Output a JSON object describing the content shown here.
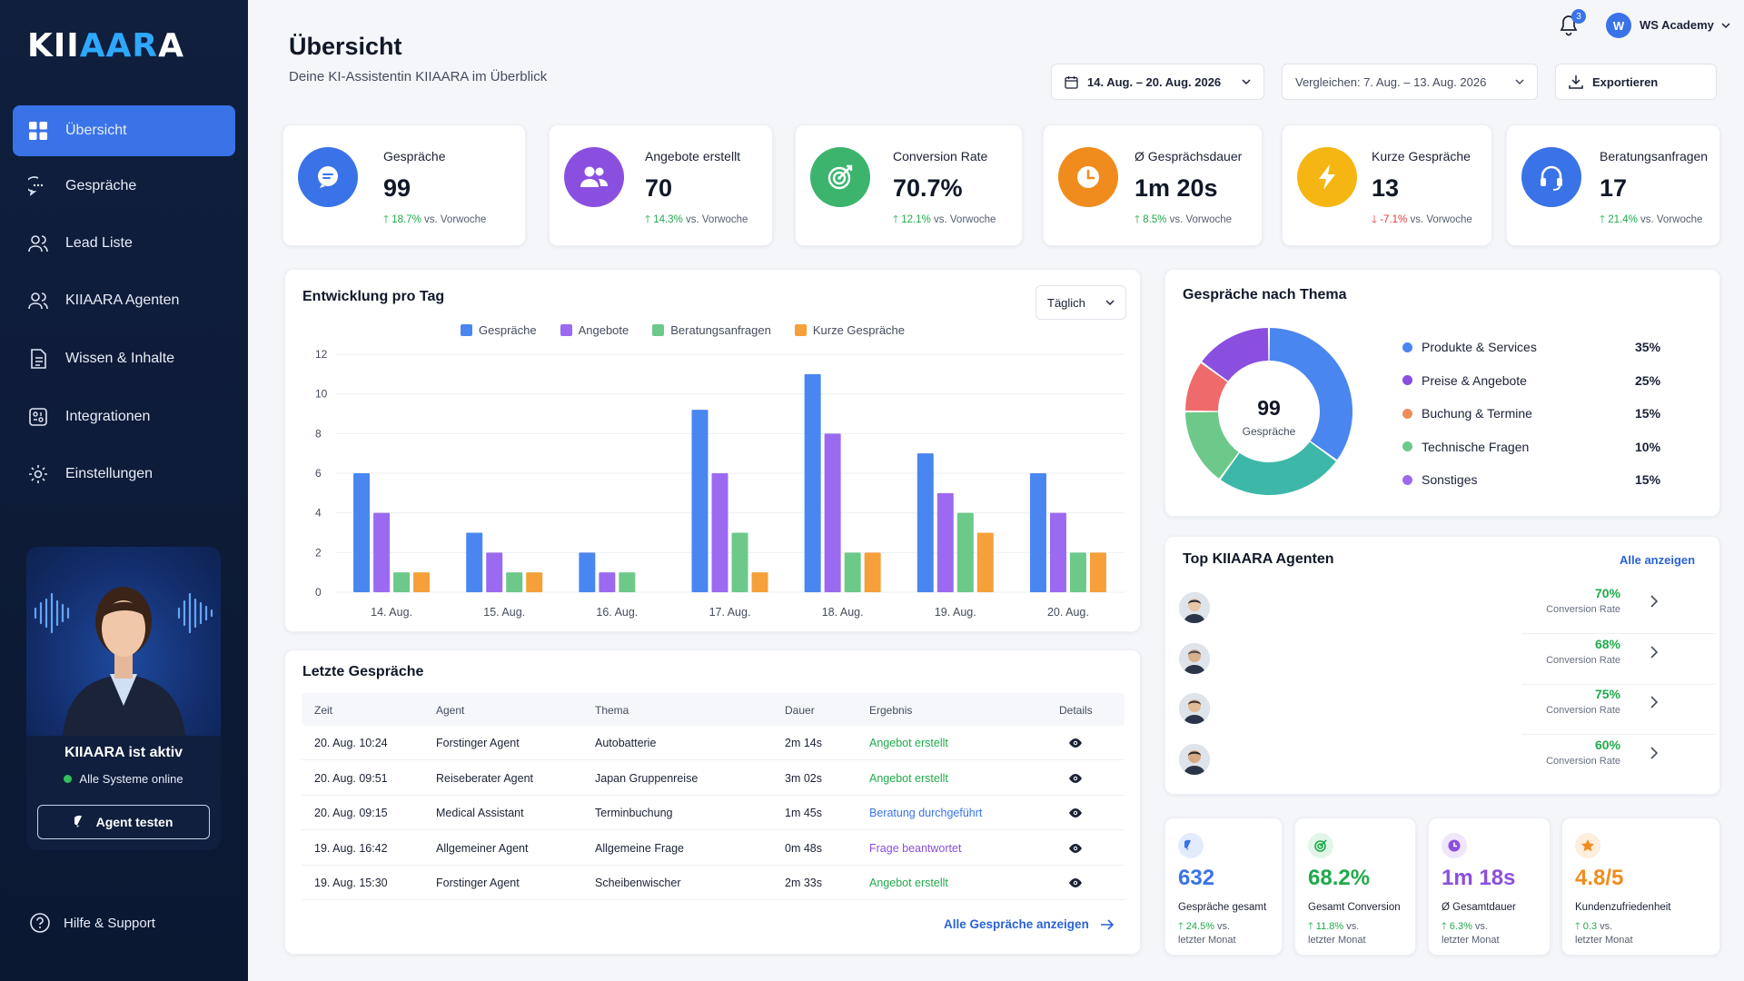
{
  "app": {
    "logo_main": "KIIAARA",
    "account": "WS Academy",
    "account_initial": "W",
    "notifications": "3"
  },
  "nav": {
    "items": [
      {
        "label": "Übersicht",
        "icon": "grid-icon",
        "active": true
      },
      {
        "label": "Gespräche",
        "icon": "chat-icon"
      },
      {
        "label": "Lead Liste",
        "icon": "users-icon"
      },
      {
        "label": "KIIAARA Agenten",
        "icon": "agents-icon"
      },
      {
        "label": "Wissen & Inhalte",
        "icon": "document-icon"
      },
      {
        "label": "Integrationen",
        "icon": "integrations-icon"
      },
      {
        "label": "Einstellungen",
        "icon": "gear-icon"
      }
    ],
    "status_title": "KIIAARA ist aktiv",
    "status_sub": "Alle Systeme online",
    "test_button": "Agent testen",
    "help": "Hilfe & Support"
  },
  "header": {
    "title": "Übersicht",
    "subtitle": "Deine KI-Assistentin KIIAARA im Überblick",
    "date_range": "14. Aug. – 20. Aug. 2026",
    "compare": "Vergleichen: 7. Aug. – 13. Aug. 2026",
    "export": "Exportieren"
  },
  "kpis": [
    {
      "label": "Gespräche",
      "value": "99",
      "delta": "18.7%",
      "trend": "up",
      "suffix": "vs. Vorwoche",
      "color": "#3a73e8",
      "icon": "chat-icon"
    },
    {
      "label": "Angebote erstellt",
      "value": "70",
      "delta": "14.3%",
      "trend": "up",
      "suffix": "vs. Vorwoche",
      "color": "#8b4fe0",
      "icon": "users-icon"
    },
    {
      "label": "Conversion Rate",
      "value": "70.7%",
      "delta": "12.1%",
      "trend": "up",
      "suffix": "vs. Vorwoche",
      "color": "#3cb46e",
      "icon": "target-icon"
    },
    {
      "label": "Ø Gesprächsdauer",
      "value": "1m 20s",
      "delta": "8.5%",
      "trend": "up",
      "suffix": "vs. Vorwoche",
      "color": "#f08c1e",
      "icon": "clock-icon"
    },
    {
      "label": "Kurze Gespräche",
      "value": "13",
      "delta": "-7.1%",
      "trend": "down",
      "suffix": "vs. Vorwoche",
      "color": "#f5b614",
      "icon": "bolt-icon"
    },
    {
      "label": "Beratungsanfragen",
      "value": "17",
      "delta": "21.4%",
      "trend": "up",
      "suffix": "vs. Vorwoche",
      "color": "#3a73e8",
      "icon": "headset-icon"
    }
  ],
  "chart_card": {
    "title": "Entwicklung pro Tag",
    "period": "Täglich"
  },
  "chart_data": {
    "type": "bar",
    "title": "Entwicklung pro Tag",
    "categories": [
      "14. Aug.",
      "15. Aug.",
      "16. Aug.",
      "17. Aug.",
      "18. Aug.",
      "19. Aug.",
      "20. Aug."
    ],
    "series": [
      {
        "name": "Gespräche",
        "color": "#4a86f0",
        "values": [
          6,
          3,
          2,
          9.2,
          11,
          7,
          6
        ]
      },
      {
        "name": "Angebote",
        "color": "#9b6af0",
        "values": [
          4,
          2,
          1,
          6,
          8,
          5,
          4
        ]
      },
      {
        "name": "Beratungsanfragen",
        "color": "#6cc98a",
        "values": [
          1,
          1,
          1,
          3,
          2,
          4,
          2
        ]
      },
      {
        "name": "Kurze Gespräche",
        "color": "#f5a03a",
        "values": [
          1,
          1,
          0,
          1,
          2,
          3,
          2
        ]
      }
    ],
    "yticks": [
      0,
      2,
      4,
      6,
      8,
      10,
      12
    ],
    "ylim": [
      0,
      12
    ],
    "grid": true,
    "legend": "top"
  },
  "pie": {
    "title": "Gespräche nach Thema",
    "center_value": "99",
    "center_label": "Gespräche",
    "segments": [
      {
        "label": "Produkte & Services",
        "pct": "35%",
        "value": 35,
        "color": "#4a86f0"
      },
      {
        "label": "Preise & Angebote",
        "pct": "25%",
        "value": 25,
        "color": "#3db8a8"
      },
      {
        "label": "Buchung & Termine",
        "pct": "15%",
        "value": 15,
        "color": "#6cc98a"
      },
      {
        "label": "Technische Fragen",
        "pct": "10%",
        "value": 10,
        "color": "#ef6b6b"
      },
      {
        "label": "Sonstiges",
        "pct": "15%",
        "value": 15,
        "color": "#8b4fe0"
      }
    ],
    "legend_colors": [
      "#4a86f0",
      "#8b4fe0",
      "#f08c5a",
      "#6cc98a",
      "#9b6af0"
    ]
  },
  "recent": {
    "title": "Letzte Gespräche",
    "headers": [
      "Zeit",
      "Agent",
      "Thema",
      "Dauer",
      "Ergebnis",
      "Details"
    ],
    "rows": [
      {
        "time": "20. Aug. 10:24",
        "agent": "Forstinger Agent",
        "topic": "Autobatterie",
        "duration": "2m 14s",
        "result": "Angebot erstellt",
        "color": "#1faa4b"
      },
      {
        "time": "20. Aug. 09:51",
        "agent": "Reiseberater Agent",
        "topic": "Japan Gruppenreise",
        "duration": "3m 02s",
        "result": "Angebot erstellt",
        "color": "#1faa4b"
      },
      {
        "time": "20. Aug. 09:15",
        "agent": "Medical Assistant",
        "topic": "Terminbuchung",
        "duration": "1m 45s",
        "result": "Beratung durchgeführt",
        "color": "#3a73e8"
      },
      {
        "time": "19. Aug. 16:42",
        "agent": "Allgemeiner Agent",
        "topic": "Allgemeine Frage",
        "duration": "0m 48s",
        "result": "Frage beantwortet",
        "color": "#8b4fe0"
      },
      {
        "time": "19. Aug. 15:30",
        "agent": "Forstinger Agent",
        "topic": "Scheibenwischer",
        "duration": "2m 33s",
        "result": "Angebot erstellt",
        "color": "#1faa4b"
      }
    ],
    "show_all": "Alle Gespräche anzeigen"
  },
  "top_agents": {
    "title": "Top KIIAARA Agenten",
    "show_all": "Alle anzeigen",
    "agents": [
      {
        "pct": "70%",
        "label": "Conversion Rate"
      },
      {
        "pct": "68%",
        "label": "Conversion Rate"
      },
      {
        "pct": "75%",
        "label": "Conversion Rate"
      },
      {
        "pct": "60%",
        "label": "Conversion Rate"
      }
    ]
  },
  "summary": [
    {
      "value": "632",
      "label": "Gespräche gesamt",
      "delta": "24.5%",
      "suffix1": "vs.",
      "suffix2": "letzter Monat",
      "color": "#3a73e8",
      "icon": "chat-icon"
    },
    {
      "value": "68.2%",
      "label": "Gesamt Conversion",
      "delta": "11.8%",
      "suffix1": "vs.",
      "suffix2": "letzter Monat",
      "color": "#1faa4b",
      "icon": "target-icon"
    },
    {
      "value": "1m 18s",
      "label": "Ø Gesamtdauer",
      "delta": "6.3%",
      "suffix1": "vs.",
      "suffix2": "letzter Monat",
      "color": "#8b4fe0",
      "icon": "clock-icon"
    },
    {
      "value": "4.8/5",
      "label": "Kundenzufriedenheit",
      "delta": "0.3",
      "suffix1": "vs.",
      "suffix2": "letzter Monat",
      "color": "#f08c1e",
      "icon": "star-icon"
    }
  ]
}
